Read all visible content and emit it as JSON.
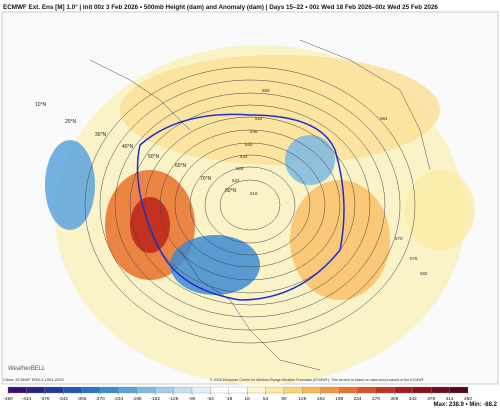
{
  "header": {
    "title": "ECMWF Ext. Ens [M] 1.0° | Init 00z 3 Feb 2026 • 500mb Height (dam) and Anomaly (dam) | Days 15–22 • 00z Wed 18 Feb 2026–00z Wed 25 Feb 2026"
  },
  "map": {
    "lat_labels": [
      "10°N",
      "20°N",
      "30°N",
      "40°N",
      "50°N",
      "60°N",
      "70°N",
      "80°N"
    ],
    "contour_labels": [
      "558",
      "552",
      "546",
      "540",
      "534",
      "528",
      "522",
      "516",
      "564",
      "570",
      "576",
      "582"
    ],
    "logo": "WeatherBELL"
  },
  "colorbar": {
    "ticks": [
      -450,
      -414,
      -378,
      -342,
      -306,
      -270,
      -234,
      -198,
      -162,
      -126,
      -90,
      -54,
      -18,
      18,
      54,
      90,
      126,
      162,
      198,
      234,
      270,
      306,
      342,
      378,
      414,
      450
    ],
    "colors": [
      "#3b0f70",
      "#2c1f8a",
      "#1f3a9e",
      "#1f56b4",
      "#2a72c6",
      "#3d8bd3",
      "#5aa3dc",
      "#7cb9e4",
      "#a2cdec",
      "#c6e0f2",
      "#e3eff8",
      "#ffffff",
      "#ffffff",
      "#fff6cc",
      "#fde9a0",
      "#fbd374",
      "#f9b554",
      "#f4953e",
      "#ea7230",
      "#da4f26",
      "#c4321f",
      "#a81c1c",
      "#8c101c",
      "#6f0a1c",
      "#54061a"
    ]
  },
  "footer": {
    "climo": "Climo: ECMWF ERA-5 1991-2020",
    "copyright": "© 2026 European Centre for Medium-Range Weather Forecasts (ECMWF). This service is based on data and products of the ECMWF",
    "maxmin": "Max: 238.9 • Min: -88.2"
  }
}
